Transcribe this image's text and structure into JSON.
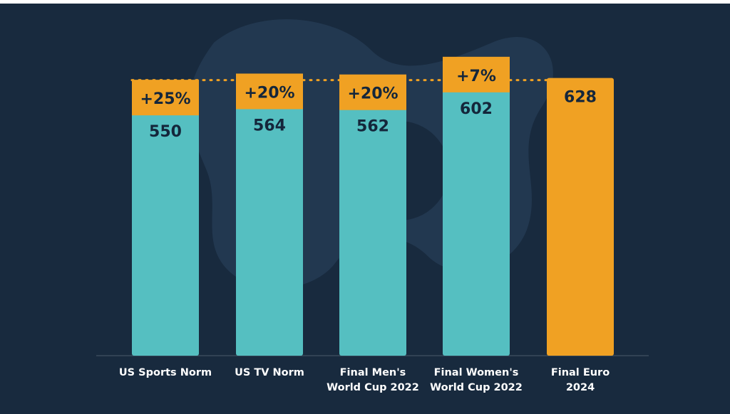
{
  "colors": {
    "background": "#182a3e",
    "bar": "#55bfc1",
    "highlight_bar": "#f0a123",
    "badge": "#f0a123",
    "value_text": "#14263b",
    "label_text": "#ffffff",
    "baseline": "#4a5a6b",
    "dotted_line": "#f0a123",
    "watermark": "#243a52"
  },
  "chart_data": {
    "type": "bar",
    "title": "",
    "xlabel": "",
    "ylabel": "",
    "categories": [
      "US Sports Norm",
      "US TV Norm",
      "Final Men's World Cup 2022",
      "Final Women's World Cup 2022",
      "Final Euro 2024"
    ],
    "category_lines": [
      [
        "US Sports Norm"
      ],
      [
        "US TV Norm"
      ],
      [
        "Final Men's",
        "World Cup 2022"
      ],
      [
        "Final Women's",
        "World Cup 2022"
      ],
      [
        "Final Euro",
        "2024"
      ]
    ],
    "values": [
      550,
      564,
      562,
      602,
      628
    ],
    "value_labels": [
      "550",
      "564",
      "562",
      "602",
      "628"
    ],
    "badges": [
      "+25%",
      "+20%",
      "+20%",
      "+7%",
      ""
    ],
    "highlight_index": 4,
    "ylim": [
      0,
      650
    ],
    "grid": false,
    "legend": "none"
  }
}
